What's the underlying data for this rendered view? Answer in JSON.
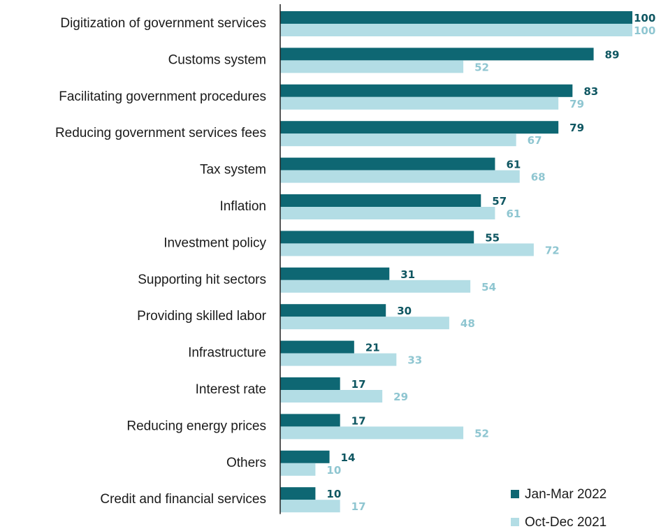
{
  "chart_data": {
    "type": "bar",
    "orientation": "horizontal",
    "categories": [
      "Digitization of government services",
      "Customs system",
      "Facilitating government procedures",
      "Reducing government services fees",
      "Tax system",
      "Inflation",
      "Investment policy",
      "Supporting hit sectors",
      "Providing skilled labor",
      "Infrastructure",
      "Interest rate",
      "Reducing energy prices",
      "Others",
      "Credit and financial services"
    ],
    "series": [
      {
        "name": "Jan-Mar 2022",
        "color": "#0e6773",
        "label_color": "#0e5661",
        "values": [
          100,
          89,
          83,
          79,
          61,
          57,
          55,
          31,
          30,
          21,
          17,
          17,
          14,
          10
        ]
      },
      {
        "name": "Oct-Dec 2021",
        "color": "#b3dde5",
        "label_color": "#8fc6d1",
        "values": [
          100,
          52,
          79,
          67,
          68,
          61,
          72,
          54,
          48,
          33,
          29,
          52,
          10,
          17
        ]
      }
    ],
    "xlim": [
      0,
      100
    ],
    "grid": false,
    "legend_position": "bottom-right",
    "data_labels": true
  }
}
